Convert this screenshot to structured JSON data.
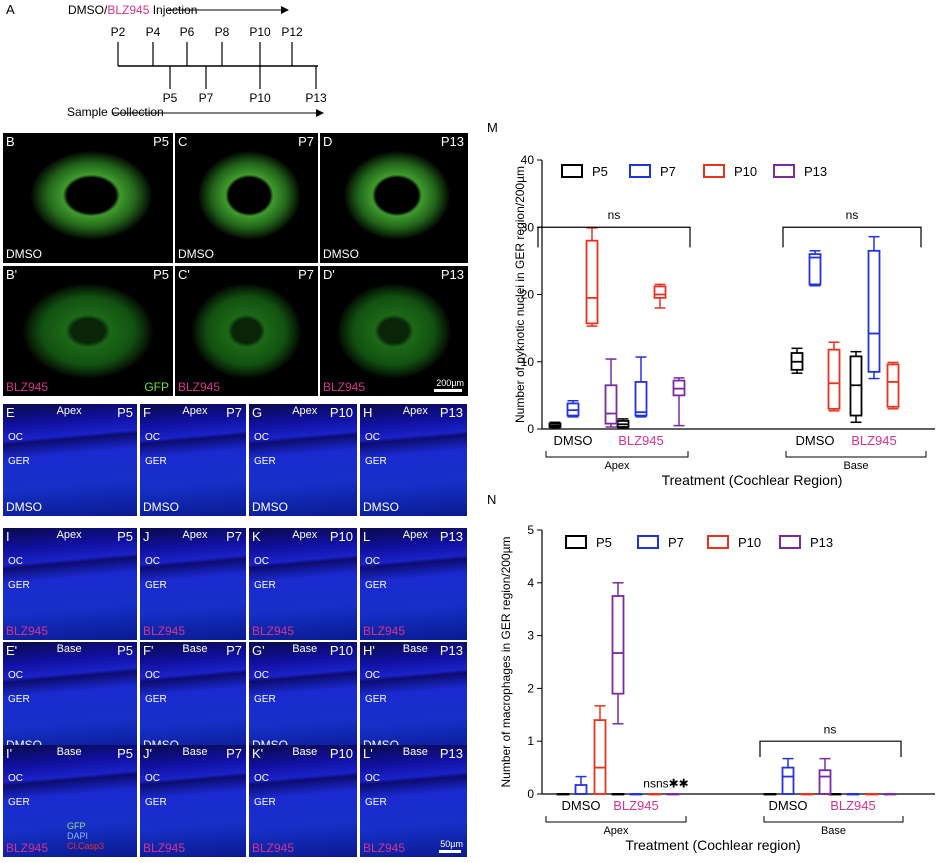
{
  "timeline": {
    "label": "A",
    "injection_prefix": "DMSO/",
    "injection_drug": "BLZ945",
    "injection_suffix": " Injection",
    "injection_days": [
      "P2",
      "P4",
      "P6",
      "P8",
      "P10",
      "P12"
    ],
    "collection_days": [
      "P5",
      "P7",
      "P10",
      "P13"
    ],
    "collection_label": "Sample Collection"
  },
  "whole_mounts": [
    {
      "id": "B",
      "age": "P5",
      "caption": "DMSO"
    },
    {
      "id": "C",
      "age": "P7",
      "caption": "DMSO"
    },
    {
      "id": "D",
      "age": "P13",
      "caption": "DMSO"
    },
    {
      "id": "B'",
      "age": "P5",
      "caption": "BLZ945",
      "caption2": "GFP"
    },
    {
      "id": "C'",
      "age": "P7",
      "caption": "BLZ945"
    },
    {
      "id": "D'",
      "age": "P13",
      "caption": "BLZ945",
      "scale": "200µm"
    }
  ],
  "sections": [
    {
      "id": "E",
      "region": "Apex",
      "age": "P5",
      "labels": [
        "OC",
        "GER"
      ],
      "caption": "DMSO"
    },
    {
      "id": "F",
      "region": "Apex",
      "age": "P7",
      "labels": [
        "OC",
        "GER"
      ],
      "caption": "DMSO"
    },
    {
      "id": "G",
      "region": "Apex",
      "age": "P10",
      "labels": [
        "OC",
        "GER"
      ],
      "caption": "DMSO"
    },
    {
      "id": "H",
      "region": "Apex",
      "age": "P13",
      "labels": [
        "OC",
        "GER"
      ],
      "caption": "DMSO"
    },
    {
      "id": "I",
      "region": "Apex",
      "age": "P5",
      "labels": [
        "OC",
        "GER"
      ],
      "caption": "BLZ945"
    },
    {
      "id": "J",
      "region": "Apex",
      "age": "P7",
      "labels": [
        "OC",
        "GER"
      ],
      "caption": "BLZ945"
    },
    {
      "id": "K",
      "region": "Apex",
      "age": "P10",
      "labels": [
        "OC",
        "GER"
      ],
      "caption": "BLZ945"
    },
    {
      "id": "L",
      "region": "Apex",
      "age": "P13",
      "labels": [
        "OC",
        "GER"
      ],
      "caption": "BLZ945"
    },
    {
      "id": "E'",
      "region": "Base",
      "age": "P5",
      "labels": [
        "OC",
        "GER"
      ],
      "caption": "DMSO"
    },
    {
      "id": "F'",
      "region": "Base",
      "age": "P7",
      "labels": [
        "OC",
        "GER"
      ],
      "caption": "DMSO"
    },
    {
      "id": "G'",
      "region": "Base",
      "age": "P10",
      "labels": [
        "OC",
        "GER"
      ],
      "caption": "DMSO"
    },
    {
      "id": "H'",
      "region": "Base",
      "age": "P13",
      "labels": [
        "OC",
        "GER"
      ],
      "caption": "DMSO"
    },
    {
      "id": "I'",
      "region": "Base",
      "age": "P5",
      "labels": [
        "OC",
        "GER"
      ],
      "caption": "BLZ945",
      "stain": [
        "GFP",
        "DAPI",
        "Cl.Casp3"
      ]
    },
    {
      "id": "J'",
      "region": "Base",
      "age": "P7",
      "labels": [
        "OC",
        "GER"
      ],
      "caption": "BLZ945"
    },
    {
      "id": "K'",
      "region": "Base",
      "age": "P10",
      "labels": [
        "OC",
        "GER"
      ],
      "caption": "BLZ945"
    },
    {
      "id": "L'",
      "region": "Base",
      "age": "P13",
      "labels": [
        "OC",
        "GER"
      ],
      "caption": "BLZ945",
      "scale": "50µm"
    }
  ],
  "colors": {
    "P5": "#000000",
    "P7": "#2233dd",
    "P10": "#e8331f",
    "P13": "#7b2aa0",
    "BLZ945": "#d6348a"
  },
  "chart_data": [
    {
      "panel": "M",
      "type": "box",
      "ylabel": "Number of pyknotic nuclei in GER region/200µm",
      "xlabel": "Treatment (Cochlear Region)",
      "ylim": [
        0,
        40
      ],
      "yticks": [
        0,
        10,
        20,
        30,
        40
      ],
      "legend": [
        "P5",
        "P7",
        "P10",
        "P13"
      ],
      "groups": [
        "DMSO",
        "BLZ945",
        "DMSO",
        "BLZ945"
      ],
      "regions": [
        "Apex",
        "Base"
      ],
      "significance": [
        {
          "region": "Apex",
          "text": "ns"
        },
        {
          "region": "Base",
          "text": "ns"
        }
      ],
      "series": [
        {
          "name": "P5",
          "color": "#000000",
          "boxes": [
            {
              "group": 0,
              "min": 0.2,
              "q1": 0.3,
              "median": 0.5,
              "q3": 0.8,
              "max": 1.0
            },
            {
              "group": 1,
              "min": 0.2,
              "q1": 0.3,
              "median": 0.7,
              "q3": 1.2,
              "max": 1.5
            },
            {
              "group": 2,
              "min": 8.3,
              "q1": 8.8,
              "median": 10.0,
              "q3": 11.3,
              "max": 12.0
            },
            {
              "group": 3,
              "min": 1.0,
              "q1": 2.0,
              "median": 6.5,
              "q3": 10.8,
              "max": 11.5
            }
          ]
        },
        {
          "name": "P7",
          "color": "#2233dd",
          "boxes": [
            {
              "group": 0,
              "min": 1.8,
              "q1": 2.0,
              "median": 2.8,
              "q3": 3.8,
              "max": 4.2
            },
            {
              "group": 1,
              "min": 1.8,
              "q1": 2.0,
              "median": 2.5,
              "q3": 7.0,
              "max": 10.7
            },
            {
              "group": 2,
              "min": 21.3,
              "q1": 21.5,
              "median": 25.5,
              "q3": 26.0,
              "max": 26.5
            },
            {
              "group": 3,
              "min": 7.5,
              "q1": 8.5,
              "median": 14.2,
              "q3": 26.5,
              "max": 28.6
            }
          ]
        },
        {
          "name": "P10",
          "color": "#e8331f",
          "boxes": [
            {
              "group": 0,
              "min": 15.3,
              "q1": 15.7,
              "median": 19.5,
              "q3": 28.0,
              "max": 29.9
            },
            {
              "group": 1,
              "min": 18.0,
              "q1": 19.5,
              "median": 20.0,
              "q3": 21.2,
              "max": 21.5
            },
            {
              "group": 2,
              "min": 2.7,
              "q1": 3.0,
              "median": 6.8,
              "q3": 11.8,
              "max": 12.9
            },
            {
              "group": 3,
              "min": 3.0,
              "q1": 3.3,
              "median": 7.0,
              "q3": 9.6,
              "max": 9.9
            }
          ]
        },
        {
          "name": "P13",
          "color": "#7b2aa0",
          "boxes": [
            {
              "group": 0,
              "min": 0.3,
              "q1": 0.8,
              "median": 2.3,
              "q3": 6.5,
              "max": 10.4
            },
            {
              "group": 1,
              "min": 0.5,
              "q1": 5.0,
              "median": 6.0,
              "q3": 7.2,
              "max": 7.6
            }
          ]
        }
      ]
    },
    {
      "panel": "N",
      "type": "box",
      "ylabel": "Number of macrophages in GER region/200µm",
      "xlabel": "Treatment (Cochlear region)",
      "ylim": [
        0,
        5
      ],
      "yticks": [
        0,
        1,
        2,
        3,
        4,
        5
      ],
      "legend": [
        "P5",
        "P7",
        "P10",
        "P13"
      ],
      "groups": [
        "DMSO",
        "BLZ945",
        "DMSO",
        "BLZ945"
      ],
      "regions": [
        "Apex",
        "Base"
      ],
      "significance": [
        {
          "region": "Apex BLZ945",
          "text": "nsns✱✱"
        },
        {
          "region": "Base",
          "text": "ns"
        }
      ],
      "series": [
        {
          "name": "P5",
          "color": "#000000",
          "boxes": [
            {
              "group": 0,
              "min": 0,
              "q1": 0,
              "median": 0,
              "q3": 0,
              "max": 0
            },
            {
              "group": 1,
              "min": 0,
              "q1": 0,
              "median": 0,
              "q3": 0,
              "max": 0
            },
            {
              "group": 2,
              "min": 0,
              "q1": 0,
              "median": 0,
              "q3": 0,
              "max": 0
            },
            {
              "group": 3,
              "min": 0,
              "q1": 0,
              "median": 0,
              "q3": 0,
              "max": 0
            }
          ]
        },
        {
          "name": "P7",
          "color": "#2233dd",
          "boxes": [
            {
              "group": 0,
              "min": 0,
              "q1": 0,
              "median": 0,
              "q3": 0.17,
              "max": 0.33
            },
            {
              "group": 1,
              "min": 0,
              "q1": 0,
              "median": 0,
              "q3": 0,
              "max": 0
            },
            {
              "group": 2,
              "min": 0,
              "q1": 0,
              "median": 0.33,
              "q3": 0.5,
              "max": 0.67
            },
            {
              "group": 3,
              "min": 0,
              "q1": 0,
              "median": 0,
              "q3": 0,
              "max": 0
            }
          ]
        },
        {
          "name": "P10",
          "color": "#e8331f",
          "boxes": [
            {
              "group": 0,
              "min": 0,
              "q1": 0,
              "median": 0.5,
              "q3": 1.4,
              "max": 1.67
            },
            {
              "group": 1,
              "min": 0,
              "q1": 0,
              "median": 0,
              "q3": 0,
              "max": 0
            },
            {
              "group": 2,
              "min": 0,
              "q1": 0,
              "median": 0,
              "q3": 0,
              "max": 0
            },
            {
              "group": 3,
              "min": 0,
              "q1": 0,
              "median": 0,
              "q3": 0,
              "max": 0
            }
          ]
        },
        {
          "name": "P13",
          "color": "#7b2aa0",
          "boxes": [
            {
              "group": 0,
              "min": 1.33,
              "q1": 1.9,
              "median": 2.67,
              "q3": 3.75,
              "max": 4.0
            },
            {
              "group": 1,
              "min": 0,
              "q1": 0,
              "median": 0,
              "q3": 0,
              "max": 0
            },
            {
              "group": 2,
              "min": 0,
              "q1": 0,
              "median": 0.33,
              "q3": 0.45,
              "max": 0.67
            },
            {
              "group": 3,
              "min": 0,
              "q1": 0,
              "median": 0,
              "q3": 0,
              "max": 0
            }
          ]
        }
      ]
    }
  ]
}
